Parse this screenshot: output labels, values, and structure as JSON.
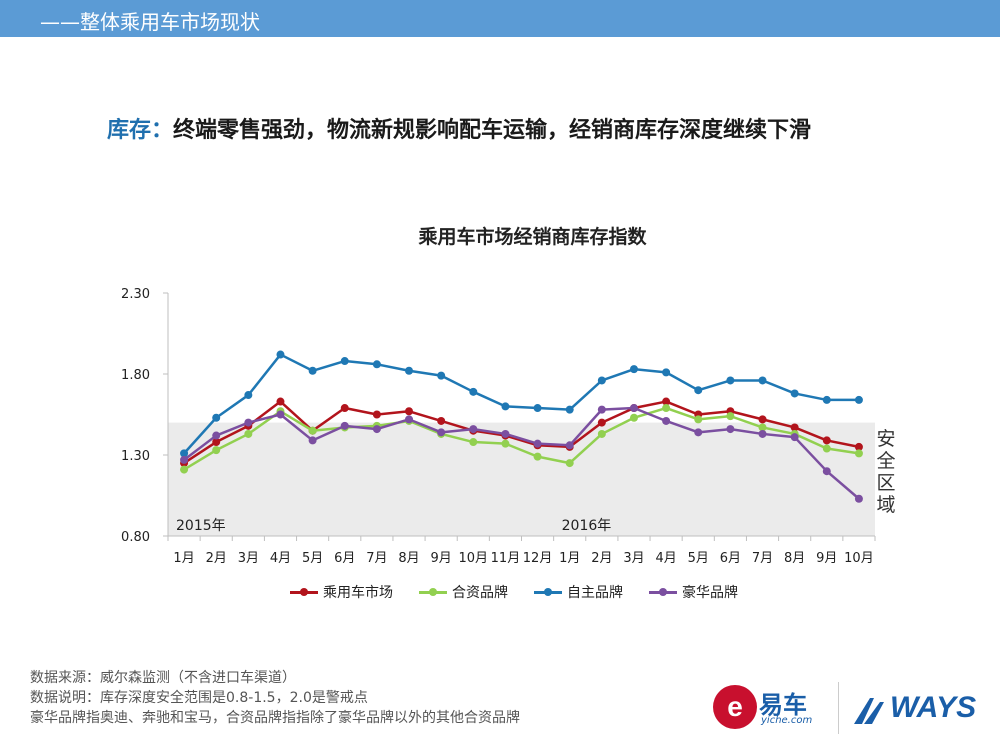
{
  "header": {
    "title": "——整体乘用车市场现状"
  },
  "subtitle": {
    "keyword": "库存：",
    "text": "终端零售强劲，物流新规影响配车运输，经销商库存深度继续下滑"
  },
  "chart_data": {
    "type": "line",
    "title": "乘用车市场经销商库存指数",
    "categories": [
      "1月",
      "2月",
      "3月",
      "4月",
      "5月",
      "6月",
      "7月",
      "8月",
      "9月",
      "10月",
      "11月",
      "12月",
      "1月",
      "2月",
      "3月",
      "4月",
      "5月",
      "6月",
      "7月",
      "8月",
      "9月",
      "10月"
    ],
    "ylim": [
      0.8,
      2.3
    ],
    "yticks": [
      "0.80",
      "1.30",
      "1.80",
      "2.30"
    ],
    "year_labels": [
      {
        "text": "2015年",
        "at_index": 0
      },
      {
        "text": "2016年",
        "at_index": 12
      }
    ],
    "safe_zone": {
      "label": "安全区域",
      "range": [
        0.8,
        1.5
      ],
      "color": "#ebebeb"
    },
    "legend_position": "bottom",
    "grid": false,
    "series": [
      {
        "name": "乘用车市场",
        "color": "#b2141c",
        "values": [
          1.25,
          1.38,
          1.48,
          1.63,
          1.45,
          1.59,
          1.55,
          1.57,
          1.51,
          1.45,
          1.42,
          1.36,
          1.35,
          1.5,
          1.59,
          1.63,
          1.55,
          1.57,
          1.52,
          1.47,
          1.39,
          1.35
        ]
      },
      {
        "name": "合资品牌",
        "color": "#92d050",
        "values": [
          1.21,
          1.33,
          1.43,
          1.57,
          1.45,
          1.47,
          1.48,
          1.51,
          1.43,
          1.38,
          1.37,
          1.29,
          1.25,
          1.43,
          1.53,
          1.59,
          1.52,
          1.54,
          1.47,
          1.43,
          1.34,
          1.31
        ]
      },
      {
        "name": "自主品牌",
        "color": "#1f78b4",
        "values": [
          1.31,
          1.53,
          1.67,
          1.92,
          1.82,
          1.88,
          1.86,
          1.82,
          1.79,
          1.69,
          1.6,
          1.59,
          1.58,
          1.76,
          1.83,
          1.81,
          1.7,
          1.76,
          1.76,
          1.68,
          1.64,
          1.64
        ]
      },
      {
        "name": "豪华品牌",
        "color": "#7b4fa0",
        "values": [
          1.27,
          1.42,
          1.5,
          1.55,
          1.39,
          1.48,
          1.46,
          1.52,
          1.44,
          1.46,
          1.43,
          1.37,
          1.36,
          1.58,
          1.59,
          1.51,
          1.44,
          1.46,
          1.43,
          1.41,
          1.2,
          1.03
        ]
      }
    ]
  },
  "notes": [
    "数据来源：威尔森监测（不含进口车渠道）",
    "数据说明：库存深度安全范围是0.8-1.5，2.0是警戒点",
    "豪华品牌指奥迪、奔驰和宝马，合资品牌指指除了豪华品牌以外的其他合资品牌"
  ],
  "logos": {
    "yiche_mark": "e",
    "yiche_name": "易车",
    "yiche_domain": "yiche.com",
    "ways_name": "WAYS"
  }
}
